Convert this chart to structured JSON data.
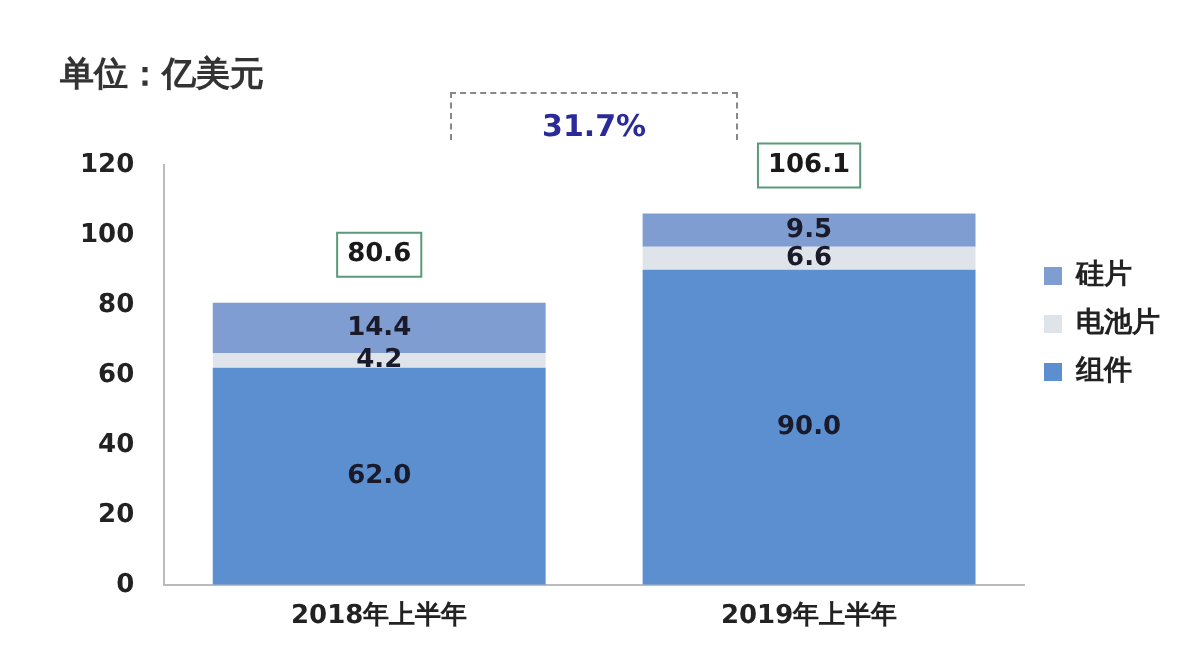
{
  "chart_data": {
    "type": "bar",
    "title": "单位：亿美元",
    "categories": [
      "2018年上半年",
      "2019年上半年"
    ],
    "stacked": true,
    "series": [
      {
        "name": "组件",
        "color": "#5b8fd0",
        "values": [
          62.0,
          90.0
        ],
        "value_labels": [
          "62.0",
          "90.0"
        ]
      },
      {
        "name": "电池片",
        "color": "#dfe4ea",
        "values": [
          4.2,
          6.6
        ],
        "value_labels": [
          "4.2",
          "6.6"
        ]
      },
      {
        "name": "硅片",
        "color": "#7f9dd0",
        "values": [
          14.4,
          9.5
        ],
        "value_labels": [
          "14.4",
          "9.5"
        ]
      }
    ],
    "totals": [
      "80.6",
      "106.1"
    ],
    "annotations": [
      "31.7%"
    ],
    "legend": "right",
    "grid": false,
    "ylim": [
      0,
      120
    ],
    "yticks": [
      0,
      20,
      40,
      60,
      80,
      100,
      120
    ]
  }
}
